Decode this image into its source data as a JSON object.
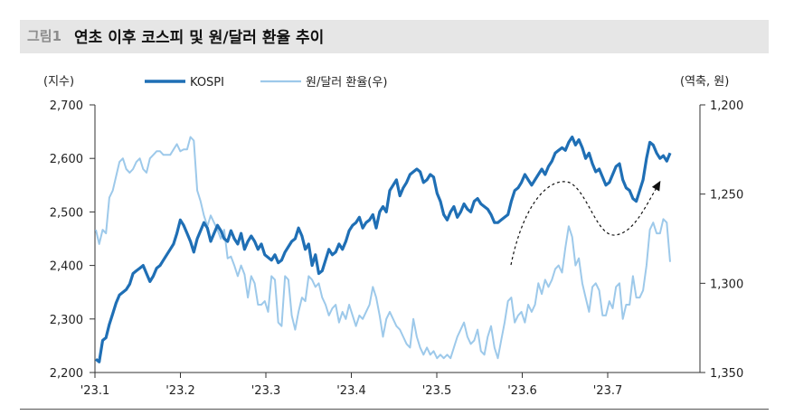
{
  "header": {
    "fig_label": "그림1",
    "title": "연초 이후 코스피 및 원/달러 환율 추이"
  },
  "chart_data": {
    "type": "line",
    "left_axis": {
      "unit_label": "(지수)",
      "min": 2200,
      "max": 2700,
      "ticks": [
        "2,200",
        "2,300",
        "2,400",
        "2,500",
        "2,600",
        "2,700"
      ]
    },
    "right_axis": {
      "unit_label": "(역축, 원)",
      "inverted": true,
      "min": 1200,
      "max": 1350,
      "ticks": [
        "1,200",
        "1,250",
        "1,300",
        "1,350"
      ]
    },
    "x_ticks": [
      "'23.1",
      "'23.2",
      "'23.3",
      "'23.4",
      "'23.5",
      "'23.6",
      "'23.7"
    ],
    "legend": {
      "placement": "top",
      "items": [
        "KOSPI",
        "원/달러 환율(우)"
      ]
    },
    "colors": {
      "kospi": "#1f6fb5",
      "fx": "#9dc9ea",
      "arrow": "#111111"
    },
    "annotation": "dashed-curved-arrow",
    "series": [
      {
        "name": "KOSPI",
        "axis": "left",
        "values": [
          2225,
          2220,
          2260,
          2265,
          2290,
          2310,
          2330,
          2345,
          2350,
          2355,
          2365,
          2385,
          2390,
          2395,
          2400,
          2385,
          2370,
          2380,
          2395,
          2400,
          2410,
          2420,
          2430,
          2440,
          2460,
          2485,
          2475,
          2460,
          2445,
          2425,
          2450,
          2465,
          2480,
          2470,
          2445,
          2460,
          2475,
          2465,
          2450,
          2445,
          2465,
          2450,
          2440,
          2460,
          2430,
          2445,
          2455,
          2445,
          2430,
          2440,
          2420,
          2415,
          2410,
          2420,
          2405,
          2410,
          2425,
          2435,
          2445,
          2450,
          2470,
          2455,
          2430,
          2440,
          2400,
          2420,
          2385,
          2390,
          2410,
          2430,
          2420,
          2425,
          2440,
          2430,
          2445,
          2465,
          2475,
          2480,
          2490,
          2470,
          2480,
          2485,
          2495,
          2470,
          2500,
          2510,
          2500,
          2540,
          2550,
          2560,
          2530,
          2545,
          2555,
          2570,
          2575,
          2580,
          2575,
          2555,
          2560,
          2570,
          2565,
          2535,
          2520,
          2495,
          2485,
          2500,
          2510,
          2490,
          2500,
          2515,
          2505,
          2500,
          2520,
          2525,
          2515,
          2510,
          2505,
          2495,
          2480,
          2480,
          2485,
          2490,
          2495,
          2520,
          2540,
          2545,
          2555,
          2570,
          2560,
          2550,
          2560,
          2570,
          2580,
          2570,
          2585,
          2595,
          2610,
          2615,
          2620,
          2615,
          2630,
          2640,
          2625,
          2635,
          2620,
          2600,
          2610,
          2590,
          2575,
          2580,
          2565,
          2550,
          2555,
          2570,
          2585,
          2590,
          2560,
          2545,
          2540,
          2525,
          2520,
          2540,
          2560,
          2600,
          2630,
          2625,
          2610,
          2600,
          2605,
          2595,
          2610
        ]
      },
      {
        "name": "원/달러 환율(우)",
        "axis": "right",
        "values": [
          1270,
          1278,
          1270,
          1272,
          1252,
          1248,
          1240,
          1232,
          1230,
          1236,
          1238,
          1236,
          1232,
          1230,
          1236,
          1238,
          1230,
          1228,
          1226,
          1226,
          1228,
          1228,
          1228,
          1225,
          1222,
          1226,
          1225,
          1225,
          1218,
          1220,
          1248,
          1254,
          1262,
          1268,
          1262,
          1266,
          1270,
          1275,
          1270,
          1286,
          1285,
          1290,
          1296,
          1290,
          1295,
          1308,
          1296,
          1300,
          1312,
          1312,
          1310,
          1316,
          1296,
          1298,
          1322,
          1324,
          1296,
          1298,
          1318,
          1326,
          1316,
          1308,
          1310,
          1296,
          1298,
          1302,
          1300,
          1308,
          1312,
          1318,
          1314,
          1312,
          1322,
          1316,
          1320,
          1312,
          1318,
          1324,
          1318,
          1320,
          1316,
          1312,
          1302,
          1308,
          1318,
          1330,
          1320,
          1316,
          1320,
          1324,
          1326,
          1330,
          1334,
          1336,
          1320,
          1330,
          1336,
          1340,
          1336,
          1340,
          1338,
          1342,
          1340,
          1342,
          1340,
          1342,
          1336,
          1330,
          1326,
          1322,
          1330,
          1334,
          1332,
          1326,
          1338,
          1340,
          1330,
          1324,
          1336,
          1342,
          1332,
          1322,
          1310,
          1308,
          1322,
          1318,
          1316,
          1322,
          1312,
          1316,
          1312,
          1300,
          1306,
          1298,
          1302,
          1298,
          1292,
          1290,
          1294,
          1280,
          1268,
          1274,
          1290,
          1286,
          1300,
          1308,
          1316,
          1302,
          1300,
          1304,
          1318,
          1318,
          1310,
          1314,
          1302,
          1300,
          1320,
          1312,
          1312,
          1296,
          1308,
          1308,
          1304,
          1290,
          1270,
          1266,
          1272,
          1272,
          1264,
          1266,
          1288
        ]
      }
    ]
  }
}
